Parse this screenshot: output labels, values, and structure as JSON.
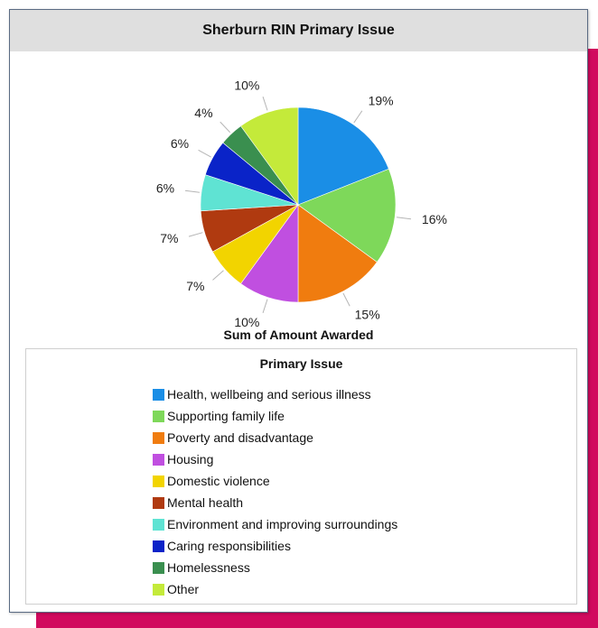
{
  "chart_data": {
    "type": "pie",
    "title": "Sherburn RIN Primary Issue",
    "measure": "Sum of Amount Awarded",
    "legend_title": "Primary Issue",
    "legend_position": "bottom",
    "slices": [
      {
        "label": "Health, wellbeing and serious illness",
        "value": 19,
        "display": "19%",
        "color": "#1a8ee6"
      },
      {
        "label": "Supporting family life",
        "value": 16,
        "display": "16%",
        "color": "#7ed85a"
      },
      {
        "label": "Poverty and disadvantage",
        "value": 15,
        "display": "15%",
        "color": "#f07c0f"
      },
      {
        "label": "Housing",
        "value": 10,
        "display": "10%",
        "color": "#c04fe0"
      },
      {
        "label": "Domestic violence",
        "value": 7,
        "display": "7%",
        "color": "#f2d400"
      },
      {
        "label": "Mental health",
        "value": 7,
        "display": "7%",
        "color": "#b03a10"
      },
      {
        "label": "Environment and improving surroundings",
        "value": 6,
        "display": "6%",
        "color": "#5fe3d3"
      },
      {
        "label": "Caring responsibilities",
        "value": 6,
        "display": "6%",
        "color": "#0a23c8"
      },
      {
        "label": "Homelessness",
        "value": 4,
        "display": "4%",
        "color": "#3a8f4f"
      },
      {
        "label": "Other",
        "value": 10,
        "display": "10%",
        "color": "#c4ea3a"
      }
    ]
  }
}
